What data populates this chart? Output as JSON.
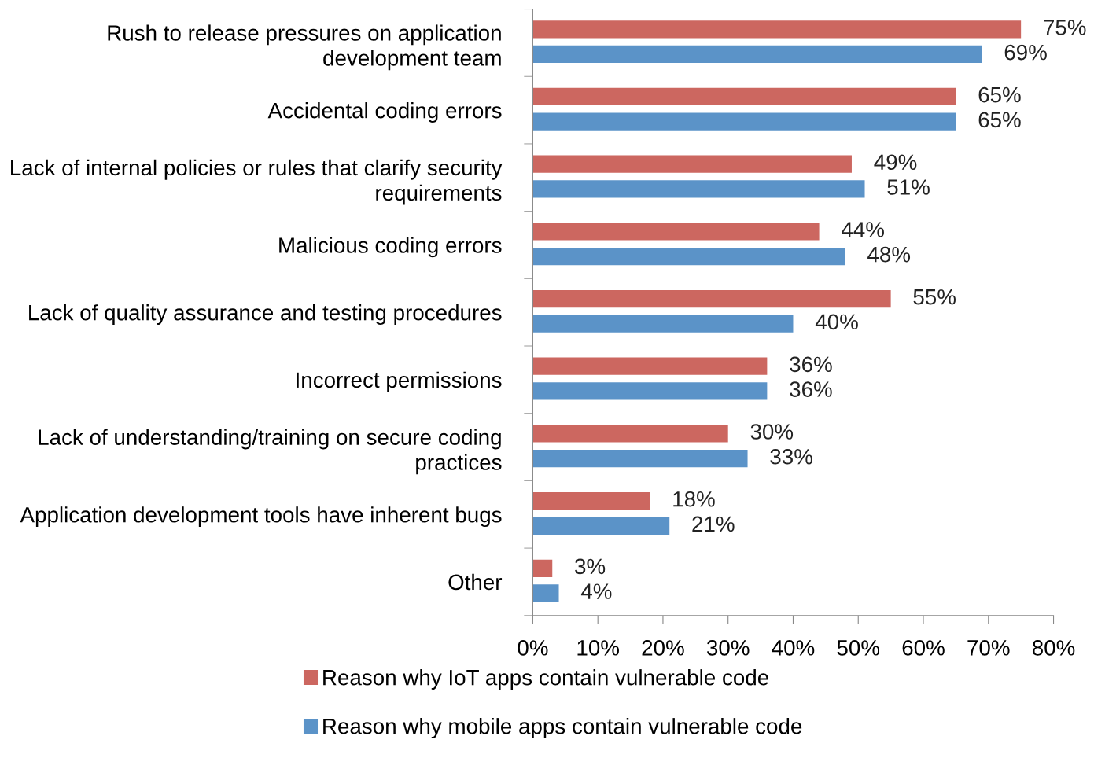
{
  "chart_data": {
    "type": "bar",
    "orientation": "horizontal",
    "categories": [
      "Rush to release pressures on application development team",
      "Accidental coding errors",
      "Lack of internal policies or rules that clarify security requirements",
      "Malicious coding errors",
      "Lack of quality assurance and testing procedures",
      "Incorrect permissions",
      "Lack of understanding/training on secure coding practices",
      "Application development tools have inherent bugs",
      "Other"
    ],
    "series": [
      {
        "name": "Reason why IoT apps contain vulnerable code",
        "color": "#cc6760",
        "values": [
          75,
          65,
          49,
          44,
          55,
          36,
          30,
          18,
          3
        ],
        "value_labels": [
          "75%",
          "65%",
          "49%",
          "44%",
          "55%",
          "36%",
          "30%",
          "18%",
          "3%"
        ]
      },
      {
        "name": "Reason why mobile apps contain vulnerable code",
        "color": "#5b93c8",
        "values": [
          69,
          65,
          51,
          48,
          40,
          36,
          33,
          21,
          4
        ],
        "value_labels": [
          "69%",
          "65%",
          "51%",
          "48%",
          "40%",
          "36%",
          "33%",
          "21%",
          "4%"
        ]
      }
    ],
    "xlim": [
      0,
      80
    ],
    "xticks": [
      {
        "value": 0,
        "label": "0%"
      },
      {
        "value": 10,
        "label": "10%"
      },
      {
        "value": 20,
        "label": "20%"
      },
      {
        "value": 30,
        "label": "30%"
      },
      {
        "value": 40,
        "label": "40%"
      },
      {
        "value": 50,
        "label": "50%"
      },
      {
        "value": 60,
        "label": "60%"
      },
      {
        "value": 70,
        "label": "70%"
      },
      {
        "value": 80,
        "label": "80%"
      }
    ],
    "legend": "bottom"
  }
}
